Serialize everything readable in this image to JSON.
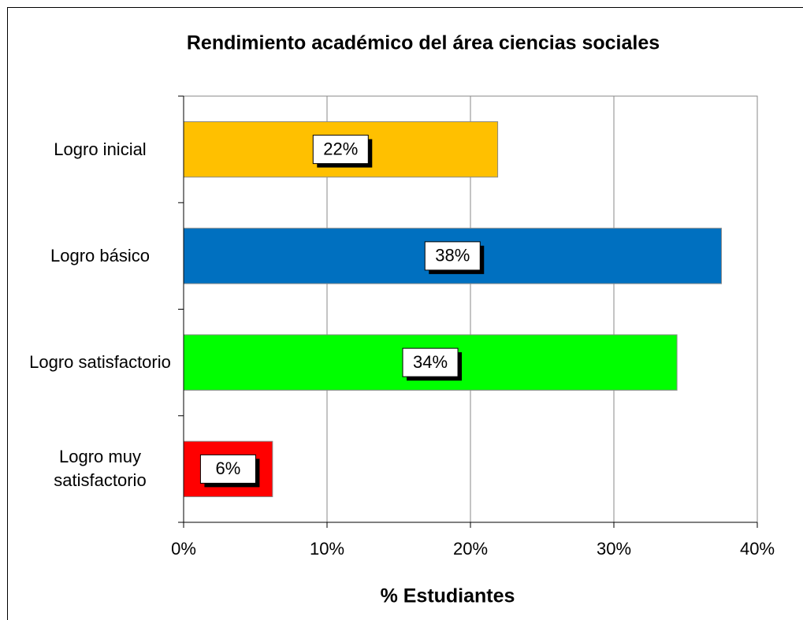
{
  "chart_data": {
    "type": "barh",
    "title": "Rendimiento académico del área ciencias sociales",
    "xlabel": "% Estudiantes",
    "categories": [
      "Logro inicial",
      "Logro básico",
      "Logro satisfactorio",
      "Logro muy satisfactorio"
    ],
    "values": [
      21.9,
      37.5,
      34.4,
      6.2
    ],
    "value_labels": [
      "22%",
      "38%",
      "34%",
      "6%"
    ],
    "colors": [
      "#ffc000",
      "#0070c0",
      "#00ff00",
      "#ff0000"
    ],
    "xlim": [
      0,
      40
    ],
    "xticks": [
      {
        "value": 0,
        "label": "0%"
      },
      {
        "value": 10,
        "label": "10%"
      },
      {
        "value": 20,
        "label": "20%"
      },
      {
        "value": 30,
        "label": "30%"
      },
      {
        "value": 40,
        "label": "40%"
      }
    ],
    "grid": true
  }
}
